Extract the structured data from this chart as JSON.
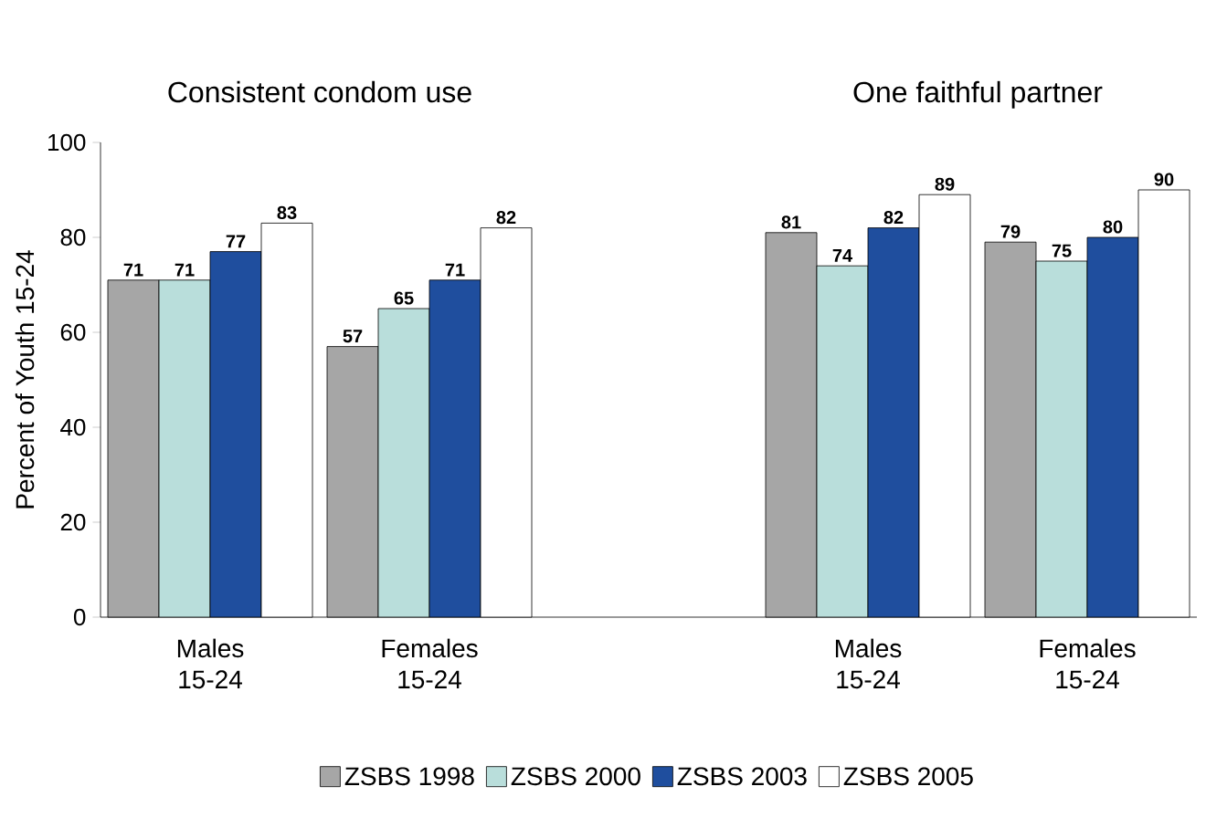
{
  "chart_data": {
    "type": "bar",
    "categories": [
      "Males 15-24",
      "Females 15-24",
      null,
      "Males 15-24",
      "Females 15-24"
    ],
    "series": [
      {
        "name": "ZSBS 1998",
        "color": "#a6a6a6",
        "values": [
          71,
          57,
          null,
          81,
          79
        ]
      },
      {
        "name": "ZSBS 2000",
        "color": "#b9dedb",
        "values": [
          71,
          65,
          null,
          74,
          75
        ]
      },
      {
        "name": "ZSBS 2003",
        "color": "#1f4e9e",
        "values": [
          77,
          71,
          null,
          82,
          80
        ]
      },
      {
        "name": "ZSBS 2005",
        "color": "#ffffff",
        "values": [
          83,
          82,
          null,
          89,
          90
        ]
      }
    ],
    "ylabel": "Percent of Youth 15-24",
    "annotations": [
      "Consistent condom use",
      "One faithful partner"
    ],
    "ylim": [
      0,
      100
    ],
    "yticks": [
      0,
      20,
      40,
      60,
      80,
      100
    ],
    "data_labels": true,
    "legend": "bottom",
    "grid": false
  }
}
